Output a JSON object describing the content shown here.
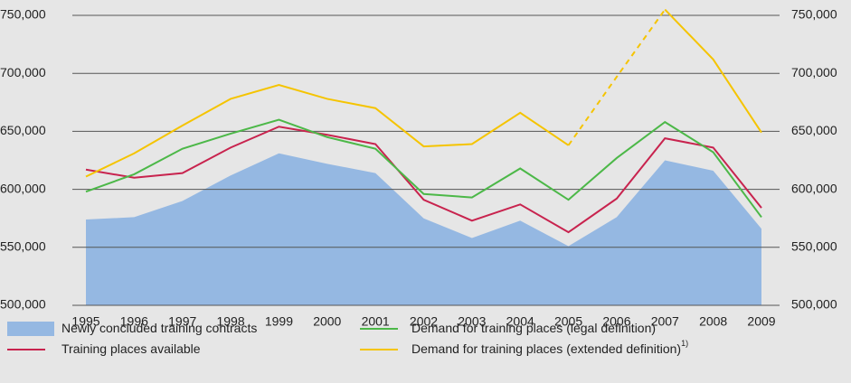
{
  "chart_data": {
    "type": "line",
    "categories": [
      "1995",
      "1996",
      "1997",
      "1998",
      "1999",
      "2000",
      "2001",
      "2002",
      "2003",
      "2004",
      "2005",
      "2006",
      "2007",
      "2008",
      "2009"
    ],
    "series": [
      {
        "name": "Newly concluded training contracts",
        "color": "#95b8e2",
        "kind": "area",
        "values": [
          574000,
          576000,
          590000,
          612000,
          631000,
          622000,
          614000,
          575000,
          558000,
          573000,
          551000,
          576000,
          625000,
          616000,
          566000
        ]
      },
      {
        "name": "Training places available",
        "color": "#c8234e",
        "kind": "line",
        "values": [
          617000,
          610000,
          614000,
          636000,
          654000,
          647000,
          639000,
          591000,
          573000,
          587000,
          563000,
          592000,
          644000,
          636000,
          584000
        ]
      },
      {
        "name": "Demand for training places (legal definition)",
        "color": "#4cb848",
        "kind": "line",
        "values": [
          598000,
          613000,
          635000,
          648000,
          660000,
          645000,
          635000,
          596000,
          593000,
          618000,
          591000,
          627000,
          658000,
          632000,
          576000
        ]
      },
      {
        "name": "Demand for training places (extended definition)",
        "footnote_mark": "1)",
        "color": "#f5c400",
        "kind": "line",
        "dashed_between": [
          "2005",
          "2007"
        ],
        "values": [
          611000,
          631000,
          655000,
          678000,
          690000,
          678000,
          670000,
          637000,
          639000,
          666000,
          638000,
          697000,
          755000,
          712000,
          649000
        ]
      }
    ],
    "ylim": [
      500000,
      750000
    ],
    "yticks": [
      {
        "value": 500000,
        "label": "500,000"
      },
      {
        "value": 550000,
        "label": "550,000"
      },
      {
        "value": 600000,
        "label": "600,000"
      },
      {
        "value": 650000,
        "label": "650,000"
      },
      {
        "value": 700000,
        "label": "700,000"
      },
      {
        "value": 750000,
        "label": "750,000"
      }
    ],
    "grid": true
  }
}
